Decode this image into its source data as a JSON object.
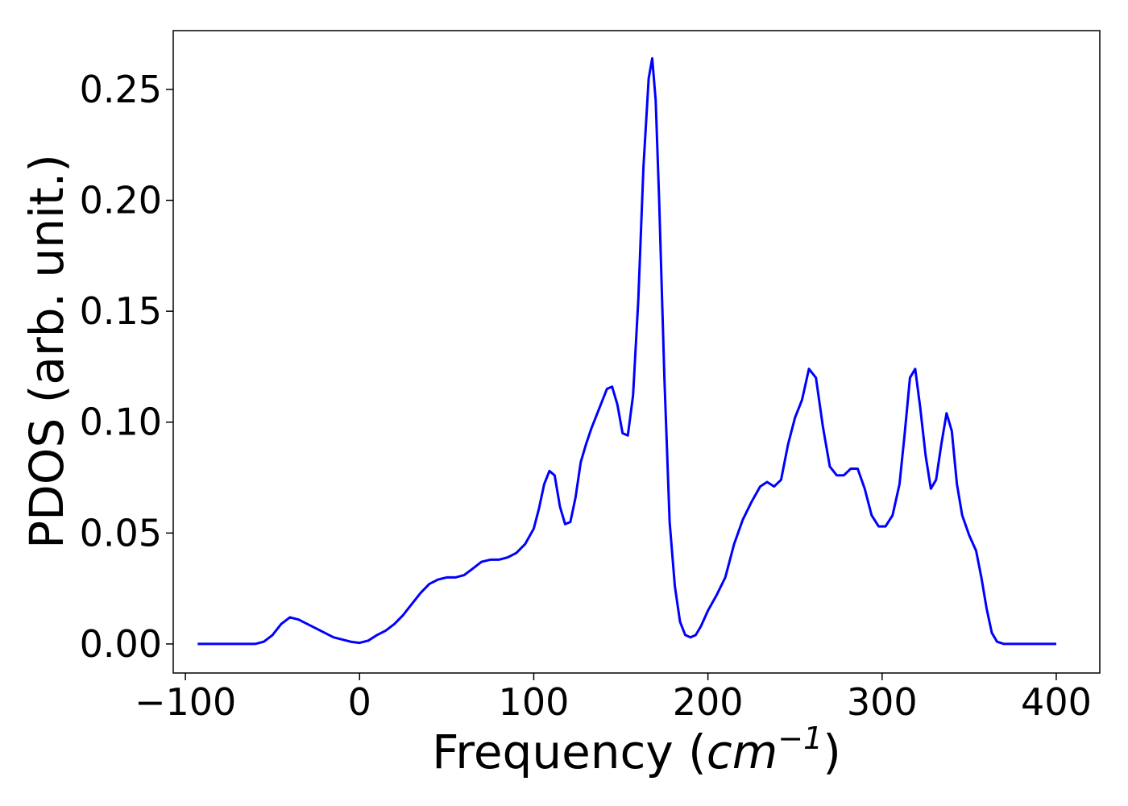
{
  "chart_data": {
    "type": "line",
    "title": "",
    "xlabel": "Frequency",
    "xlabel_unit_base": "cm",
    "xlabel_unit_exp": "−1",
    "ylabel": "PDOS (arb. unit.)",
    "xlim": [
      -107,
      425
    ],
    "ylim": [
      -0.0131,
      0.2765
    ],
    "grid": false,
    "x_ticks": [
      -100,
      0,
      100,
      200,
      300,
      400
    ],
    "x_tick_labels": [
      "−100",
      "0",
      "100",
      "200",
      "300",
      "400"
    ],
    "y_ticks": [
      0,
      0.05,
      0.1,
      0.15,
      0.2,
      0.25
    ],
    "y_tick_labels": [
      "0.00",
      "0.05",
      "0.10",
      "0.15",
      "0.20",
      "0.25"
    ],
    "line_color": "#0000ff",
    "series": [
      {
        "x": [
          -93,
          -60,
          -55,
          -50,
          -45,
          -40,
          -35,
          -30,
          -25,
          -20,
          -15,
          -10,
          -5,
          0,
          5,
          10,
          15,
          20,
          25,
          30,
          35,
          40,
          45,
          50,
          55,
          60,
          65,
          70,
          75,
          80,
          85,
          90,
          95,
          100,
          103,
          106,
          109,
          112,
          115,
          118,
          121,
          124,
          127,
          130,
          133,
          136,
          139,
          142,
          145,
          148,
          151,
          154,
          157,
          160,
          163,
          166,
          168,
          170,
          172,
          175,
          178,
          181,
          184,
          187,
          190,
          193,
          196,
          200,
          205,
          210,
          215,
          220,
          225,
          230,
          234,
          238,
          242,
          246,
          250,
          254,
          258,
          262,
          266,
          270,
          274,
          278,
          282,
          286,
          290,
          294,
          298,
          302,
          306,
          310,
          313,
          316,
          319,
          322,
          325,
          328,
          331,
          334,
          337,
          340,
          343,
          346,
          350,
          354,
          357,
          360,
          363,
          366,
          370,
          380,
          400
        ],
        "y": [
          0,
          0,
          0.001,
          0.004,
          0.009,
          0.012,
          0.011,
          0.009,
          0.007,
          0.005,
          0.003,
          0.002,
          0.001,
          0.0005,
          0.0015,
          0.004,
          0.006,
          0.009,
          0.013,
          0.018,
          0.023,
          0.027,
          0.029,
          0.03,
          0.03,
          0.031,
          0.034,
          0.037,
          0.038,
          0.038,
          0.039,
          0.041,
          0.045,
          0.052,
          0.061,
          0.072,
          0.078,
          0.076,
          0.062,
          0.054,
          0.055,
          0.066,
          0.082,
          0.09,
          0.097,
          0.103,
          0.109,
          0.115,
          0.116,
          0.108,
          0.095,
          0.094,
          0.112,
          0.155,
          0.215,
          0.255,
          0.264,
          0.245,
          0.2,
          0.12,
          0.055,
          0.026,
          0.01,
          0.004,
          0.003,
          0.004,
          0.008,
          0.015,
          0.022,
          0.03,
          0.045,
          0.056,
          0.064,
          0.071,
          0.073,
          0.071,
          0.074,
          0.09,
          0.102,
          0.11,
          0.124,
          0.12,
          0.098,
          0.08,
          0.076,
          0.076,
          0.079,
          0.079,
          0.07,
          0.058,
          0.053,
          0.053,
          0.058,
          0.072,
          0.095,
          0.12,
          0.124,
          0.106,
          0.085,
          0.07,
          0.074,
          0.09,
          0.104,
          0.096,
          0.072,
          0.058,
          0.049,
          0.042,
          0.03,
          0.016,
          0.005,
          0.001,
          0,
          0,
          0
        ]
      }
    ]
  }
}
